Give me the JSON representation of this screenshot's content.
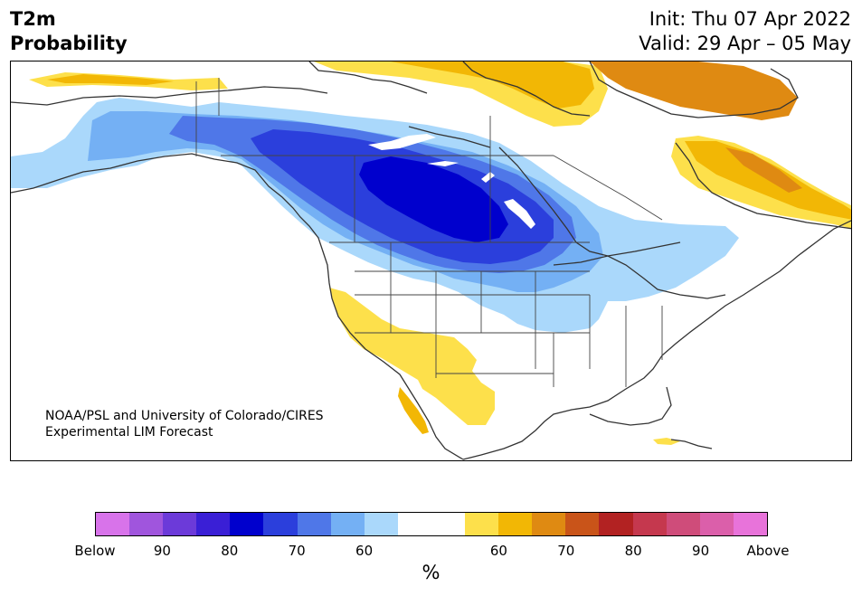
{
  "header": {
    "title_line1": "T2m",
    "title_line2": "Probability",
    "init": "Init: Thu 07 Apr 2022",
    "valid": "Valid: 29 Apr – 05 May"
  },
  "map": {
    "credit_line1": "NOAA/PSL and University of Colorado/CIRES",
    "credit_line2": "Experimental LIM Forecast",
    "colors": {
      "below_60": "#aad8fb",
      "below_70": "#74b0f4",
      "below_75": "#4f77e8",
      "below_80": "#2b3fdc",
      "below_85": "#0000cd",
      "above_60": "#fde04b",
      "above_65": "#f2b705",
      "above_70": "#df8a12",
      "land_outline": "#333333"
    }
  },
  "colorbar": {
    "colors": [
      "#d873ea",
      "#a055dd",
      "#6c3ad9",
      "#3a1fd6",
      "#0000cd",
      "#2b3fdc",
      "#4f77e8",
      "#74b0f4",
      "#aad8fb",
      "#ffffff",
      "#ffffff",
      "#fde04b",
      "#f2b705",
      "#df8a12",
      "#c95419",
      "#b22222",
      "#c5384e",
      "#cf4c7a",
      "#db5faa",
      "#e873da"
    ],
    "tick_labels": [
      "Below",
      "90",
      "80",
      "70",
      "60",
      "60",
      "70",
      "80",
      "90",
      "Above"
    ],
    "unit": "%"
  }
}
